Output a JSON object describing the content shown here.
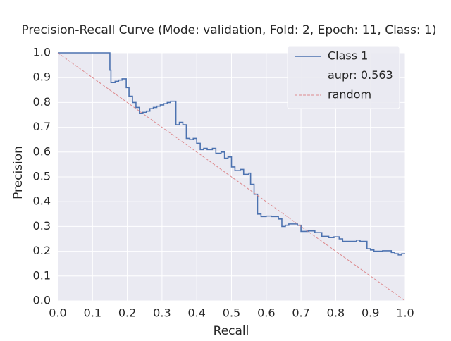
{
  "chart_data": {
    "type": "line",
    "title": "Precision-Recall Curve (Mode: validation, Fold: 2, Epoch: 11, Class: 1)",
    "x_label": "Recall",
    "y_label": "Precision",
    "xlim": [
      0,
      1
    ],
    "ylim": [
      0,
      1
    ],
    "xticks": [
      {
        "value": 0,
        "label": "0.0"
      },
      {
        "value": 0.1,
        "label": "0.1"
      },
      {
        "value": 0.2,
        "label": "0.2"
      },
      {
        "value": 0.3,
        "label": "0.3"
      },
      {
        "value": 0.4,
        "label": "0.4"
      },
      {
        "value": 0.5,
        "label": "0.5"
      },
      {
        "value": 0.6,
        "label": "0.6"
      },
      {
        "value": 0.7,
        "label": "0.7"
      },
      {
        "value": 0.8,
        "label": "0.8"
      },
      {
        "value": 0.9,
        "label": "0.9"
      },
      {
        "value": 1,
        "label": "1.0"
      }
    ],
    "yticks": [
      {
        "value": 0,
        "label": "0.0"
      },
      {
        "value": 0.1,
        "label": "0.1"
      },
      {
        "value": 0.2,
        "label": "0.2"
      },
      {
        "value": 0.3,
        "label": "0.3"
      },
      {
        "value": 0.4,
        "label": "0.4"
      },
      {
        "value": 0.5,
        "label": "0.5"
      },
      {
        "value": 0.6,
        "label": "0.6"
      },
      {
        "value": 0.7,
        "label": "0.7"
      },
      {
        "value": 0.8,
        "label": "0.8"
      },
      {
        "value": 0.9,
        "label": "0.9"
      },
      {
        "value": 1,
        "label": "1.0"
      }
    ],
    "grid": true,
    "legend_position": "upper right",
    "legend_note": "aupr: 0.563",
    "series": [
      {
        "name": "Class 1",
        "color": "#4c72b0",
        "drawstyle": "steps-post",
        "dashed": false,
        "x": [
          0,
          0.15,
          0.153,
          0.165,
          0.175,
          0.185,
          0.197,
          0.205,
          0.215,
          0.225,
          0.235,
          0.245,
          0.255,
          0.265,
          0.275,
          0.285,
          0.295,
          0.305,
          0.315,
          0.325,
          0.34,
          0.35,
          0.36,
          0.37,
          0.38,
          0.39,
          0.4,
          0.41,
          0.42,
          0.43,
          0.445,
          0.455,
          0.47,
          0.48,
          0.49,
          0.5,
          0.51,
          0.525,
          0.535,
          0.55,
          0.555,
          0.565,
          0.575,
          0.585,
          0.6,
          0.615,
          0.635,
          0.645,
          0.655,
          0.665,
          0.69,
          0.7,
          0.72,
          0.74,
          0.76,
          0.78,
          0.795,
          0.81,
          0.82,
          0.86,
          0.87,
          0.89,
          0.9,
          0.91,
          0.935,
          0.96,
          0.97,
          0.98,
          0.99,
          1.0
        ],
        "values": [
          1.0,
          0.93,
          0.88,
          0.885,
          0.89,
          0.895,
          0.86,
          0.825,
          0.8,
          0.78,
          0.755,
          0.76,
          0.765,
          0.775,
          0.78,
          0.785,
          0.79,
          0.795,
          0.8,
          0.805,
          0.71,
          0.72,
          0.71,
          0.655,
          0.65,
          0.655,
          0.635,
          0.61,
          0.615,
          0.61,
          0.615,
          0.595,
          0.6,
          0.575,
          0.58,
          0.54,
          0.525,
          0.53,
          0.51,
          0.515,
          0.47,
          0.43,
          0.35,
          0.34,
          0.342,
          0.34,
          0.33,
          0.3,
          0.305,
          0.31,
          0.305,
          0.28,
          0.282,
          0.275,
          0.26,
          0.255,
          0.258,
          0.25,
          0.24,
          0.245,
          0.24,
          0.21,
          0.205,
          0.2,
          0.202,
          0.195,
          0.19,
          0.185,
          0.19,
          0.19
        ]
      },
      {
        "name": "random",
        "color": "#dd8a8e",
        "drawstyle": "default",
        "dashed": true,
        "x": [
          0,
          1
        ],
        "values": [
          1,
          0
        ]
      }
    ]
  }
}
